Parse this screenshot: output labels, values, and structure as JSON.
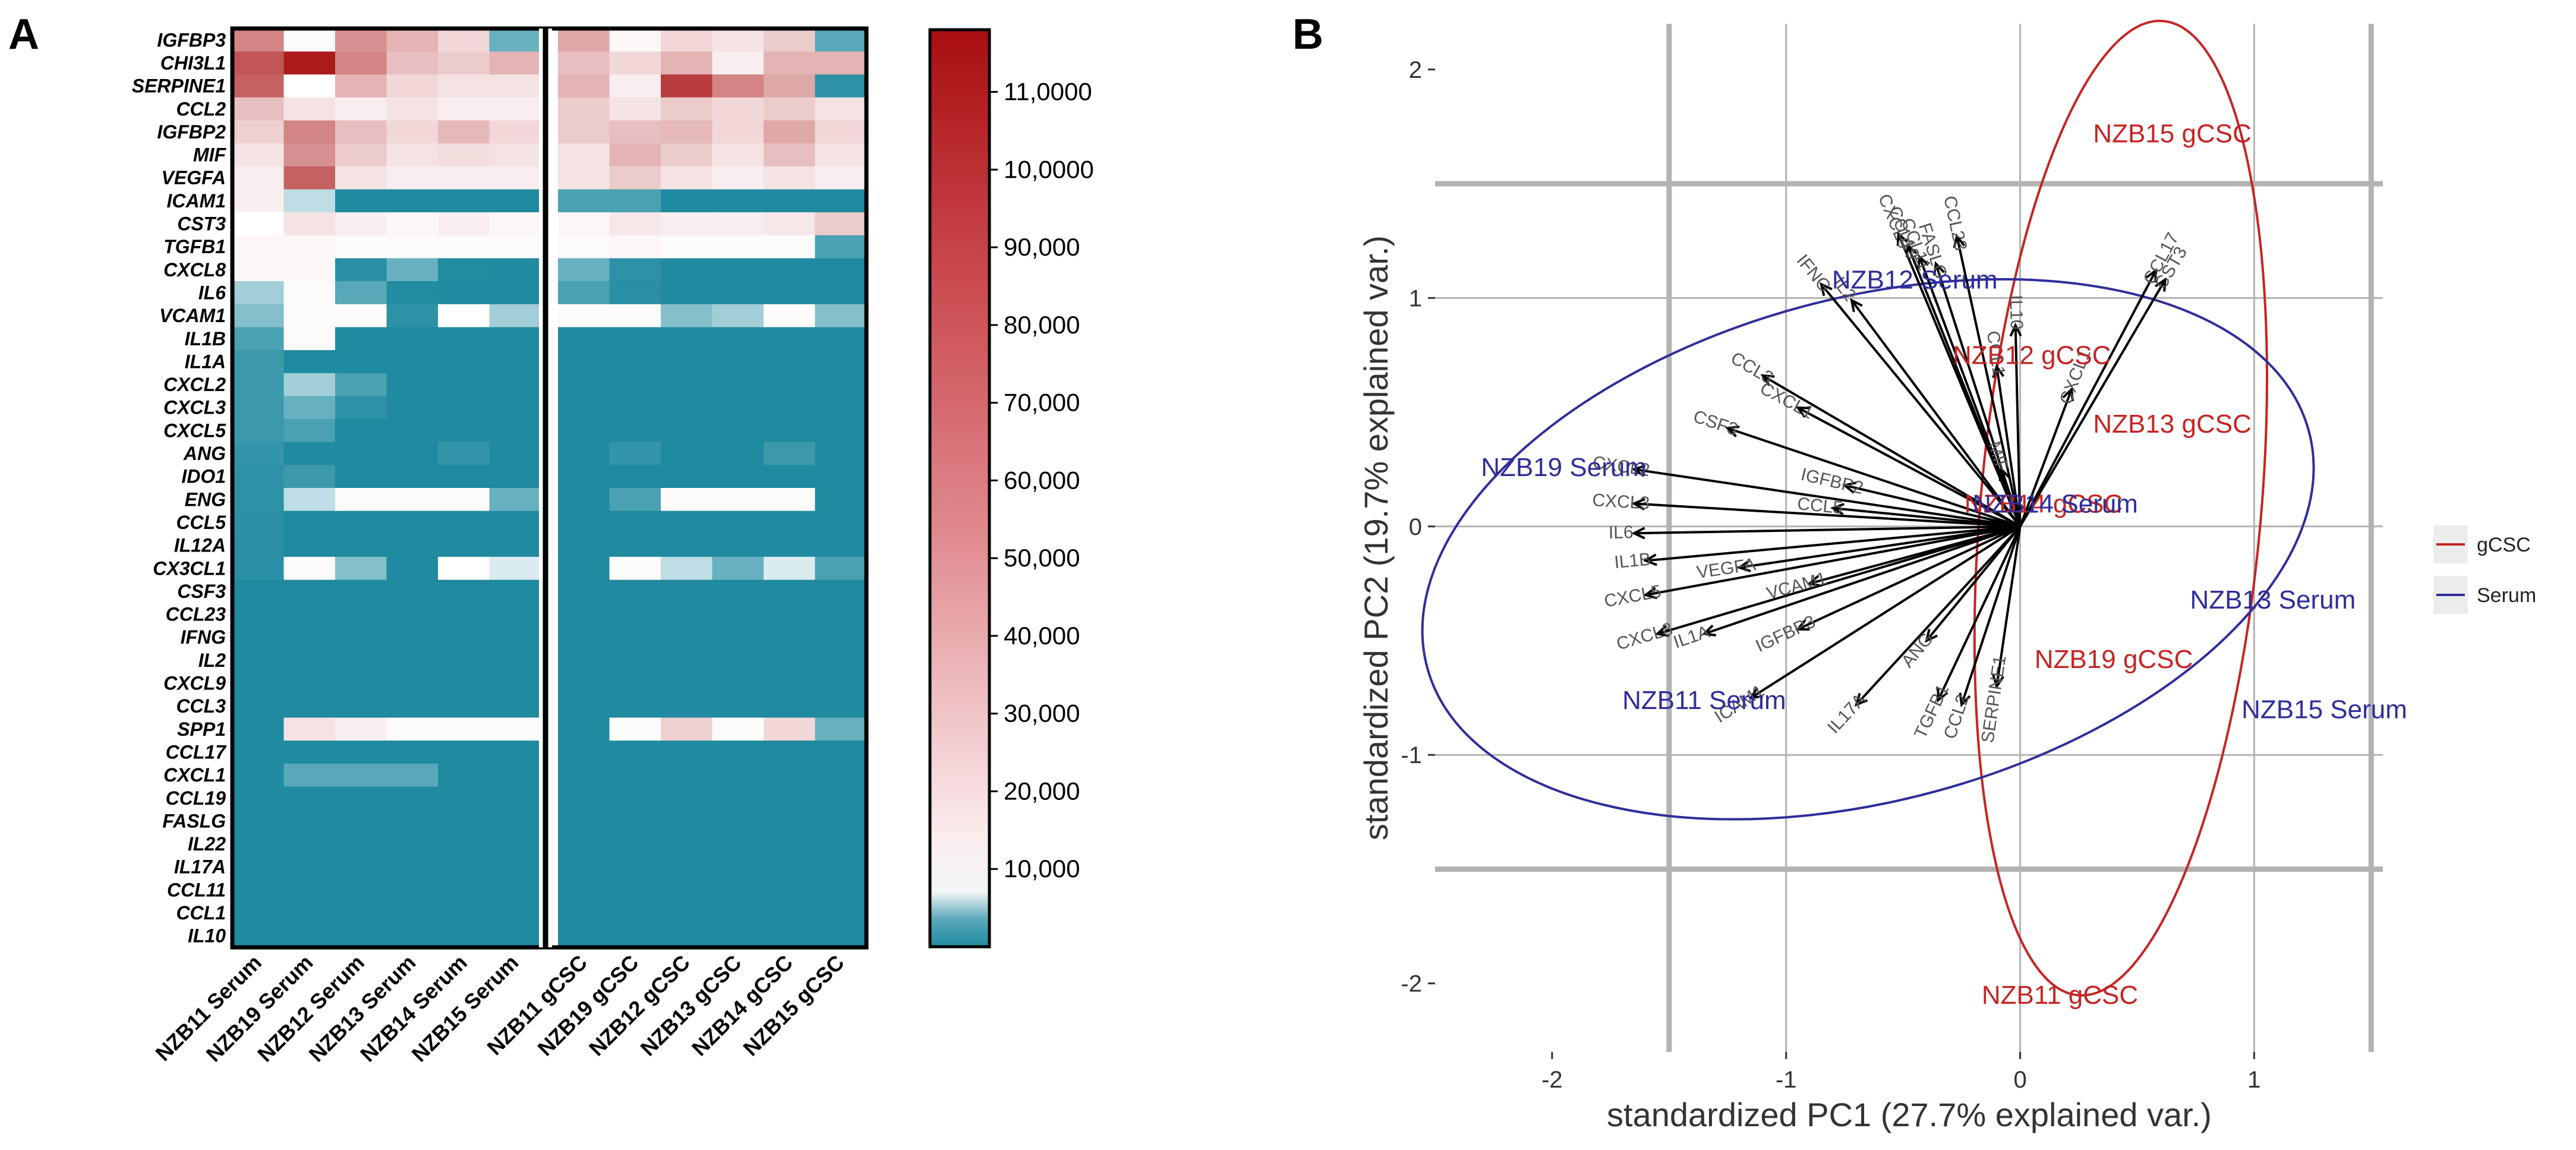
{
  "panels": {
    "a_label": "A",
    "b_label": "B"
  },
  "colors": {
    "heat_low": "#1f8aa0",
    "heat_mid": "#ffffff",
    "heat_high": "#a80e10",
    "serum": "#2e2e9a",
    "gcsc": "#c42525",
    "arrow": "#000000",
    "grid": "#b3b3b3"
  },
  "chart_data": [
    {
      "type": "heatmap",
      "title": "",
      "genes": [
        "IGFBP3",
        "CHI3L1",
        "SERPINE1",
        "CCL2",
        "IGFBP2",
        "MIF",
        "VEGFA",
        "ICAM1",
        "CST3",
        "TGFB1",
        "CXCL8",
        "IL6",
        "VCAM1",
        "IL1B",
        "IL1A",
        "CXCL2",
        "CXCL3",
        "CXCL5",
        "ANG",
        "IDO1",
        "ENG",
        "CCL5",
        "IL12A",
        "CX3CL1",
        "CSF3",
        "CCL23",
        "IFNG",
        "IL2",
        "CXCL9",
        "CCL3",
        "SPP1",
        "CCL17",
        "CXCL1",
        "CCL19",
        "FASLG",
        "IL22",
        "IL17A",
        "CCL11",
        "CCL1",
        "IL10"
      ],
      "samples": [
        "NZB11 Serum",
        "NZB19 Serum",
        "NZB12 Serum",
        "NZB13 Serum",
        "NZB14 Serum",
        "NZB15 Serum",
        "NZB11 gCSC",
        "NZB19 gCSC",
        "NZB12 gCSC",
        "NZB13 gCSC",
        "NZB14 gCSC",
        "NZB15 gCSC"
      ],
      "values": [
        [
          60000,
          10000,
          55000,
          40000,
          25000,
          3000,
          45000,
          12000,
          25000,
          20000,
          30000,
          2500
        ],
        [
          80000,
          105000,
          60000,
          35000,
          30000,
          40000,
          35000,
          25000,
          40000,
          15000,
          40000,
          40000
        ],
        [
          75000,
          8000,
          40000,
          25000,
          20000,
          20000,
          40000,
          15000,
          90000,
          60000,
          45000,
          1000
        ],
        [
          35000,
          20000,
          15000,
          20000,
          15000,
          15000,
          30000,
          20000,
          30000,
          25000,
          30000,
          20000
        ],
        [
          28000,
          60000,
          35000,
          25000,
          38000,
          25000,
          30000,
          35000,
          38000,
          25000,
          45000,
          25000
        ],
        [
          20000,
          55000,
          30000,
          20000,
          22000,
          20000,
          20000,
          40000,
          30000,
          20000,
          35000,
          20000
        ],
        [
          15000,
          75000,
          20000,
          15000,
          15000,
          15000,
          20000,
          30000,
          20000,
          15000,
          20000,
          15000
        ],
        [
          15000,
          6000,
          500,
          500,
          500,
          500,
          2000,
          2000,
          500,
          500,
          500,
          500
        ],
        [
          8000,
          20000,
          15000,
          12000,
          15000,
          12000,
          12000,
          18000,
          15000,
          15000,
          18000,
          30000
        ],
        [
          12000,
          12000,
          10000,
          10000,
          10000,
          10000,
          10000,
          12000,
          10000,
          10000,
          10000,
          2000
        ],
        [
          12000,
          12000,
          800,
          3000,
          600,
          500,
          3000,
          1000,
          500,
          500,
          500,
          500
        ],
        [
          5000,
          10000,
          2500,
          600,
          500,
          500,
          2000,
          800,
          500,
          500,
          500,
          500
        ],
        [
          4000,
          10000,
          10000,
          1000,
          8000,
          5000,
          10000,
          10000,
          4000,
          5000,
          10000,
          4000
        ],
        [
          2000,
          10000,
          500,
          500,
          500,
          500,
          500,
          500,
          500,
          500,
          500,
          500
        ],
        [
          1500,
          500,
          500,
          500,
          500,
          500,
          500,
          500,
          500,
          500,
          500,
          500
        ],
        [
          1500,
          5000,
          2000,
          500,
          500,
          500,
          500,
          500,
          500,
          500,
          500,
          500
        ],
        [
          1500,
          3000,
          1000,
          500,
          500,
          500,
          500,
          500,
          500,
          500,
          500,
          500
        ],
        [
          1500,
          2000,
          500,
          500,
          500,
          500,
          500,
          500,
          500,
          500,
          500,
          500
        ],
        [
          1200,
          500,
          500,
          500,
          1200,
          500,
          500,
          1200,
          500,
          500,
          1500,
          500
        ],
        [
          1000,
          1500,
          500,
          500,
          500,
          500,
          500,
          500,
          500,
          500,
          500,
          500
        ],
        [
          1000,
          6000,
          10000,
          10000,
          10000,
          3000,
          500,
          2000,
          10000,
          10000,
          10000,
          500
        ],
        [
          900,
          500,
          500,
          500,
          500,
          500,
          500,
          500,
          500,
          500,
          500,
          500
        ],
        [
          800,
          500,
          500,
          500,
          500,
          500,
          500,
          500,
          500,
          500,
          500,
          500
        ],
        [
          800,
          10000,
          4000,
          500,
          8000,
          7000,
          500,
          10000,
          6000,
          3000,
          7000,
          2000
        ],
        [
          500,
          500,
          500,
          500,
          500,
          500,
          500,
          500,
          500,
          500,
          500,
          500
        ],
        [
          500,
          500,
          500,
          500,
          500,
          500,
          500,
          500,
          500,
          500,
          500,
          500
        ],
        [
          500,
          500,
          500,
          500,
          500,
          500,
          500,
          500,
          500,
          500,
          500,
          500
        ],
        [
          500,
          500,
          500,
          500,
          500,
          500,
          500,
          500,
          500,
          500,
          500,
          500
        ],
        [
          500,
          500,
          500,
          500,
          500,
          500,
          500,
          500,
          500,
          500,
          500,
          500
        ],
        [
          500,
          500,
          500,
          500,
          500,
          500,
          500,
          500,
          500,
          500,
          500,
          500
        ],
        [
          500,
          20000,
          15000,
          10000,
          10000,
          10000,
          500,
          10000,
          28000,
          10000,
          25000,
          3000
        ],
        [
          500,
          500,
          500,
          500,
          500,
          500,
          500,
          500,
          500,
          500,
          500,
          500
        ],
        [
          500,
          2500,
          2500,
          2500,
          500,
          500,
          500,
          500,
          500,
          500,
          500,
          500
        ],
        [
          500,
          500,
          500,
          500,
          500,
          500,
          500,
          500,
          500,
          500,
          500,
          500
        ],
        [
          500,
          500,
          500,
          500,
          500,
          500,
          500,
          500,
          500,
          500,
          500,
          500
        ],
        [
          500,
          500,
          500,
          500,
          500,
          500,
          500,
          500,
          500,
          500,
          500,
          500
        ],
        [
          500,
          500,
          500,
          500,
          500,
          500,
          500,
          500,
          500,
          500,
          500,
          500
        ],
        [
          500,
          500,
          500,
          500,
          500,
          500,
          500,
          500,
          500,
          500,
          500,
          500
        ],
        [
          500,
          500,
          500,
          500,
          500,
          500,
          500,
          500,
          500,
          500,
          500,
          500
        ],
        [
          500,
          500,
          500,
          500,
          500,
          500,
          500,
          500,
          500,
          500,
          500,
          500
        ]
      ],
      "colorbar": {
        "ticks": [
          10000,
          20000,
          30000,
          40000,
          50000,
          60000,
          70000,
          80000,
          90000,
          100000,
          110000
        ],
        "tick_labels": [
          "10,000",
          "20,000",
          "30,000",
          "40,000",
          "50,000",
          "60,000",
          "70,000",
          "80,000",
          "90,000",
          "10,0000",
          "11,0000"
        ],
        "range": [
          0,
          118000
        ]
      }
    },
    {
      "type": "scatter",
      "subtype": "pca-biplot",
      "xlabel": "standardized PC1 (27.7% explained var.)",
      "ylabel": "standardized PC2 (19.7% explained var.)",
      "xlim": [
        -2.5,
        1.55
      ],
      "ylim": [
        -2.3,
        2.2
      ],
      "xticks": [
        -2,
        -1,
        0,
        1
      ],
      "xtick_labels": [
        "-2",
        "-1",
        "0",
        "1"
      ],
      "yticks": [
        -2,
        -1,
        0,
        1,
        2
      ],
      "ytick_labels": [
        "-2",
        "-1",
        "0",
        "1",
        "2"
      ],
      "major_grid": [
        -1.5,
        1.5
      ],
      "minor_grid": [
        -1,
        0,
        1
      ],
      "legend": {
        "position": "right",
        "entries": [
          {
            "name": "gCSC",
            "color": "#c42525"
          },
          {
            "name": "Serum",
            "color": "#2e2e9a"
          }
        ]
      },
      "observations": [
        {
          "label": "NZB15 gCSC",
          "group": "gCSC",
          "x": 0.65,
          "y": 1.72
        },
        {
          "label": "NZB12 gCSC",
          "group": "gCSC",
          "x": 0.05,
          "y": 0.75
        },
        {
          "label": "NZB13 gCSC",
          "group": "gCSC",
          "x": 0.65,
          "y": 0.45
        },
        {
          "label": "NZB14 gCSC",
          "group": "gCSC",
          "x": 0.1,
          "y": 0.1
        },
        {
          "label": "NZB19 gCSC",
          "group": "gCSC",
          "x": 0.4,
          "y": -0.58
        },
        {
          "label": "NZB11 gCSC",
          "group": "gCSC",
          "x": 0.17,
          "y": -2.05
        },
        {
          "label": "NZB12 Serum",
          "group": "Serum",
          "x": -0.45,
          "y": 1.08
        },
        {
          "label": "NZB19 Serum",
          "group": "Serum",
          "x": -1.95,
          "y": 0.26
        },
        {
          "label": "NZB14 Serum",
          "group": "Serum",
          "x": 0.15,
          "y": 0.1
        },
        {
          "label": "NZB13 Serum",
          "group": "Serum",
          "x": 1.08,
          "y": -0.32
        },
        {
          "label": "NZB11 Serum",
          "group": "Serum",
          "x": -1.35,
          "y": -0.76
        },
        {
          "label": "NZB15 Serum",
          "group": "Serum",
          "x": 1.3,
          "y": -0.8
        }
      ],
      "ellipses": [
        {
          "group": "gCSC",
          "cx": 0.43,
          "cy": 0.08,
          "rx": 0.6,
          "ry": 2.14,
          "angle_deg": -5
        },
        {
          "group": "Serum",
          "cx": -0.65,
          "cy": -0.1,
          "rx": 1.95,
          "ry": 1.1,
          "angle_deg": 15
        }
      ],
      "loadings": [
        {
          "name": "CCL23",
          "x": -0.27,
          "y": 1.27
        },
        {
          "name": "CXCL9",
          "x": -0.52,
          "y": 1.28
        },
        {
          "name": "CCL19",
          "x": -0.48,
          "y": 1.23
        },
        {
          "name": "CCL11",
          "x": -0.43,
          "y": 1.18
        },
        {
          "name": "FASLG",
          "x": -0.36,
          "y": 1.15
        },
        {
          "name": "IFNG",
          "x": -0.85,
          "y": 1.06
        },
        {
          "name": "IL2",
          "x": -0.72,
          "y": 0.99
        },
        {
          "name": "CCL17",
          "x": 0.58,
          "y": 1.12
        },
        {
          "name": "CST3",
          "x": 0.62,
          "y": 1.08
        },
        {
          "name": "CXCL1",
          "x": 0.22,
          "y": 0.6
        },
        {
          "name": "IL10",
          "x": -0.02,
          "y": 0.88
        },
        {
          "name": "CCL1",
          "x": -0.1,
          "y": 0.7
        },
        {
          "name": "MIF",
          "x": -0.08,
          "y": 0.25
        },
        {
          "name": "CCL3",
          "x": -1.1,
          "y": 0.66
        },
        {
          "name": "CXCL1",
          "x": -0.95,
          "y": 0.52
        },
        {
          "name": "CSF3",
          "x": -1.25,
          "y": 0.43
        },
        {
          "name": "CXCL2",
          "x": -1.65,
          "y": 0.25
        },
        {
          "name": "IGFBP2",
          "x": -0.75,
          "y": 0.18
        },
        {
          "name": "CCL5",
          "x": -0.8,
          "y": 0.08
        },
        {
          "name": "CXCL3",
          "x": -1.65,
          "y": 0.1
        },
        {
          "name": "IL6",
          "x": -1.65,
          "y": -0.03
        },
        {
          "name": "IL1B",
          "x": -1.6,
          "y": -0.15
        },
        {
          "name": "VEGFA",
          "x": -1.2,
          "y": -0.18
        },
        {
          "name": "VCAM1",
          "x": -0.9,
          "y": -0.25
        },
        {
          "name": "CXCL5",
          "x": -1.6,
          "y": -0.3
        },
        {
          "name": "CXCL8",
          "x": -1.55,
          "y": -0.47
        },
        {
          "name": "IL1A",
          "x": -1.35,
          "y": -0.47
        },
        {
          "name": "IGFBP3",
          "x": -0.95,
          "y": -0.45
        },
        {
          "name": "ICAM1",
          "x": -1.15,
          "y": -0.75
        },
        {
          "name": "IL17A",
          "x": -0.7,
          "y": -0.78
        },
        {
          "name": "ANG",
          "x": -0.4,
          "y": -0.5
        },
        {
          "name": "TGFB1",
          "x": -0.35,
          "y": -0.76
        },
        {
          "name": "CCL2",
          "x": -0.25,
          "y": -0.78
        },
        {
          "name": "SERPINE1",
          "x": -0.1,
          "y": -0.7
        }
      ]
    }
  ]
}
